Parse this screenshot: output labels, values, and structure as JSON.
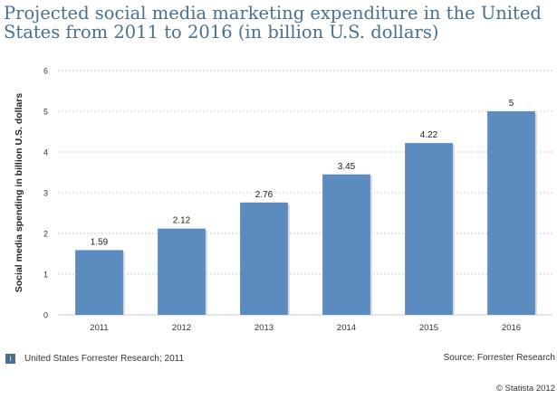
{
  "chart_data": {
    "type": "bar",
    "title": "Projected social media marketing expenditure in the United States from 2011 to 2016 (in billion U.S. dollars)",
    "xlabel": "",
    "ylabel": "Social media spending in billion U.S. dollars",
    "categories": [
      "2011",
      "2012",
      "2013",
      "2014",
      "2015",
      "2016"
    ],
    "values": [
      1.59,
      2.12,
      2.76,
      3.45,
      4.22,
      5
    ],
    "value_labels": [
      "1.59",
      "2.12",
      "2.76",
      "3.45",
      "4.22",
      "5"
    ],
    "ylim": [
      0,
      6
    ],
    "yticks": [
      "0",
      "1",
      "2",
      "3",
      "4",
      "5",
      "6"
    ],
    "grid": true,
    "bar_color": "#5b8bbf"
  },
  "footer": {
    "info_icon": "i",
    "note": "United States Forrester Research; 2011",
    "source": "Source: Forrester Research",
    "copyright": "© Statista 2012"
  }
}
